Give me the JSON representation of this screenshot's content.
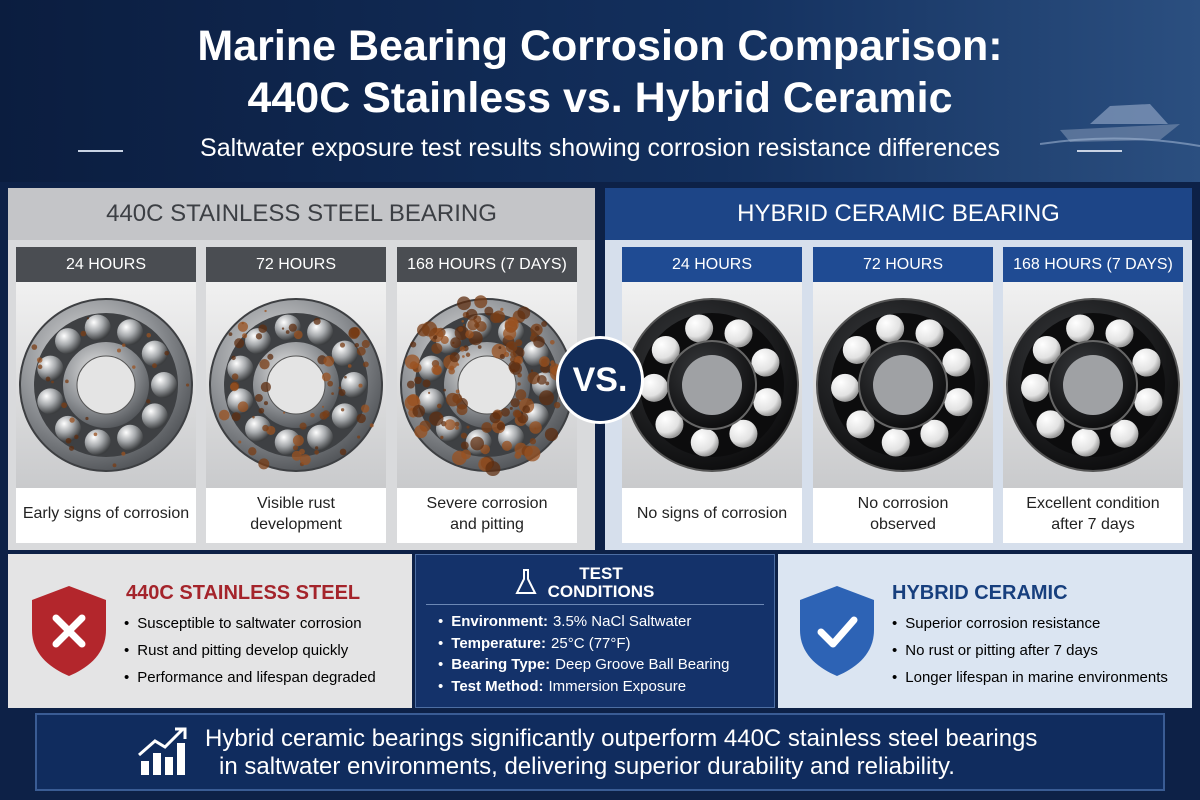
{
  "header": {
    "title_lines": [
      "Marine Bearing Corrosion Comparison:",
      "440C Stainless vs. Hybrid Ceramic"
    ],
    "subtitle": "Saltwater exposure test results showing corrosion resistance differences"
  },
  "panels": [
    {
      "title": "440C STAINLESS STEEL BEARING",
      "cards": [
        {
          "time": "24 HOURS",
          "caption_lines": [
            "Early signs of corrosion"
          ]
        },
        {
          "time": "72 HOURS",
          "caption_lines": [
            "Visible rust",
            "development"
          ]
        },
        {
          "time": "168 HOURS (7 DAYS)",
          "caption_lines": [
            "Severe corrosion",
            "and pitting"
          ]
        }
      ]
    },
    {
      "title": "HYBRID CERAMIC BEARING",
      "cards": [
        {
          "time": "24 HOURS",
          "caption_lines": [
            "No signs of corrosion"
          ]
        },
        {
          "time": "72 HOURS",
          "caption_lines": [
            "No corrosion",
            "observed"
          ]
        },
        {
          "time": "168 HOURS (7 DAYS)",
          "caption_lines": [
            "Excellent condition",
            "after 7 days"
          ]
        }
      ]
    }
  ],
  "vs": "VS.",
  "summary": {
    "left": {
      "title": "440C STAINLESS STEEL",
      "bullets": [
        "Susceptible to saltwater corrosion",
        "Rust and pitting develop quickly",
        "Performance and lifespan degraded"
      ]
    },
    "test": {
      "title_lines": [
        "TEST",
        "CONDITIONS"
      ],
      "items": [
        {
          "label": "Environment:",
          "value": "3.5% NaCl Saltwater"
        },
        {
          "label": "Temperature:",
          "value": "25°C (77°F)"
        },
        {
          "label": "Bearing Type:",
          "value": "Deep Groove Ball Bearing"
        },
        {
          "label": "Test Method:",
          "value": "Immersion Exposure"
        }
      ]
    },
    "right": {
      "title": "HYBRID CERAMIC",
      "bullets": [
        "Superior corrosion resistance",
        "No rust or pitting after 7 days",
        "Longer lifespan in marine environments"
      ]
    }
  },
  "footer": {
    "lines": [
      "Hybrid ceramic bearings significantly outperform 440C stainless steel bearings",
      "in saltwater environments, delivering superior durability and reliability."
    ]
  }
}
